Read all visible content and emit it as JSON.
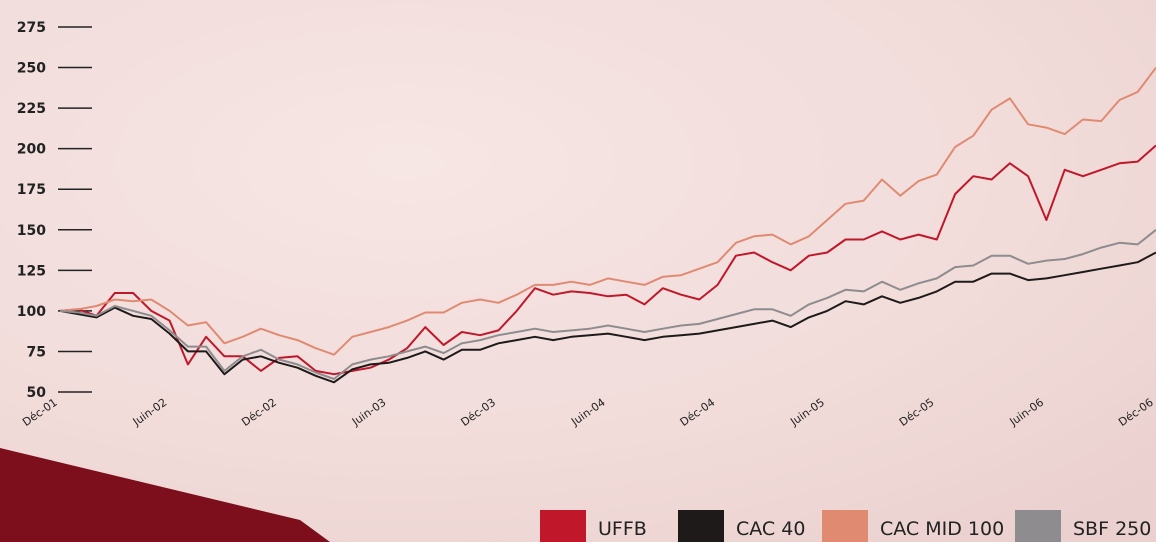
{
  "chart_data": {
    "type": "line",
    "categories": [
      "Déc-01",
      null,
      null,
      null,
      null,
      null,
      "Juin-02",
      null,
      null,
      null,
      null,
      null,
      "Déc-02",
      null,
      null,
      null,
      null,
      null,
      "Juin-03",
      null,
      null,
      null,
      null,
      null,
      "Déc-03",
      null,
      null,
      null,
      null,
      null,
      "Juin-04",
      null,
      null,
      null,
      null,
      null,
      "Déc-04",
      null,
      null,
      null,
      null,
      null,
      "Juin-05",
      null,
      null,
      null,
      null,
      null,
      "Déc-05",
      null,
      null,
      null,
      null,
      null,
      "Juin-06",
      null,
      null,
      null,
      null,
      null,
      "Déc-06"
    ],
    "series": [
      {
        "name": "UFFB",
        "color": "#c0182a",
        "values": [
          100,
          101,
          97,
          111,
          111,
          100,
          94,
          67,
          84,
          72,
          72,
          63,
          71,
          72,
          63,
          61,
          63,
          65,
          70,
          77,
          90,
          79,
          87,
          85,
          88,
          100,
          114,
          110,
          112,
          111,
          109,
          110,
          104,
          114,
          110,
          107,
          116,
          134,
          136,
          130,
          125,
          134,
          136,
          144,
          144,
          149,
          144,
          147,
          144,
          172,
          183,
          181,
          191,
          183,
          156,
          187,
          183,
          187,
          191,
          192,
          202
        ]
      },
      {
        "name": "CAC 40",
        "color": "#1e1a1a",
        "values": [
          100,
          98,
          96,
          102,
          97,
          95,
          86,
          75,
          75,
          61,
          70,
          72,
          68,
          65,
          60,
          56,
          64,
          67,
          68,
          71,
          75,
          70,
          76,
          76,
          80,
          82,
          84,
          82,
          84,
          85,
          86,
          84,
          82,
          84,
          85,
          86,
          88,
          90,
          92,
          94,
          90,
          96,
          100,
          106,
          104,
          109,
          105,
          108,
          112,
          118,
          118,
          123,
          123,
          119,
          120,
          122,
          124,
          126,
          128,
          130,
          136
        ]
      },
      {
        "name": "CAC MID 100",
        "color": "#e08a72",
        "values": [
          100,
          101,
          103,
          107,
          106,
          107,
          100,
          91,
          93,
          80,
          84,
          89,
          85,
          82,
          77,
          73,
          84,
          87,
          90,
          94,
          99,
          99,
          105,
          107,
          105,
          110,
          116,
          116,
          118,
          116,
          120,
          118,
          116,
          121,
          122,
          126,
          130,
          142,
          146,
          147,
          141,
          146,
          156,
          166,
          168,
          181,
          171,
          180,
          184,
          201,
          208,
          224,
          231,
          215,
          213,
          209,
          218,
          217,
          230,
          235,
          250
        ]
      },
      {
        "name": "SBF 250",
        "color": "#8e8c8e",
        "values": [
          100,
          99,
          97,
          103,
          100,
          97,
          88,
          78,
          78,
          63,
          72,
          76,
          70,
          67,
          62,
          58,
          67,
          70,
          72,
          75,
          78,
          74,
          80,
          82,
          85,
          87,
          89,
          87,
          88,
          89,
          91,
          89,
          87,
          89,
          91,
          92,
          95,
          98,
          101,
          101,
          97,
          104,
          108,
          113,
          112,
          118,
          113,
          117,
          120,
          127,
          128,
          134,
          134,
          129,
          131,
          132,
          135,
          139,
          142,
          141,
          150
        ]
      }
    ],
    "ylim": [
      50,
      275
    ],
    "yticks": [
      50,
      75,
      100,
      125,
      150,
      175,
      200,
      225,
      250,
      275
    ]
  }
}
